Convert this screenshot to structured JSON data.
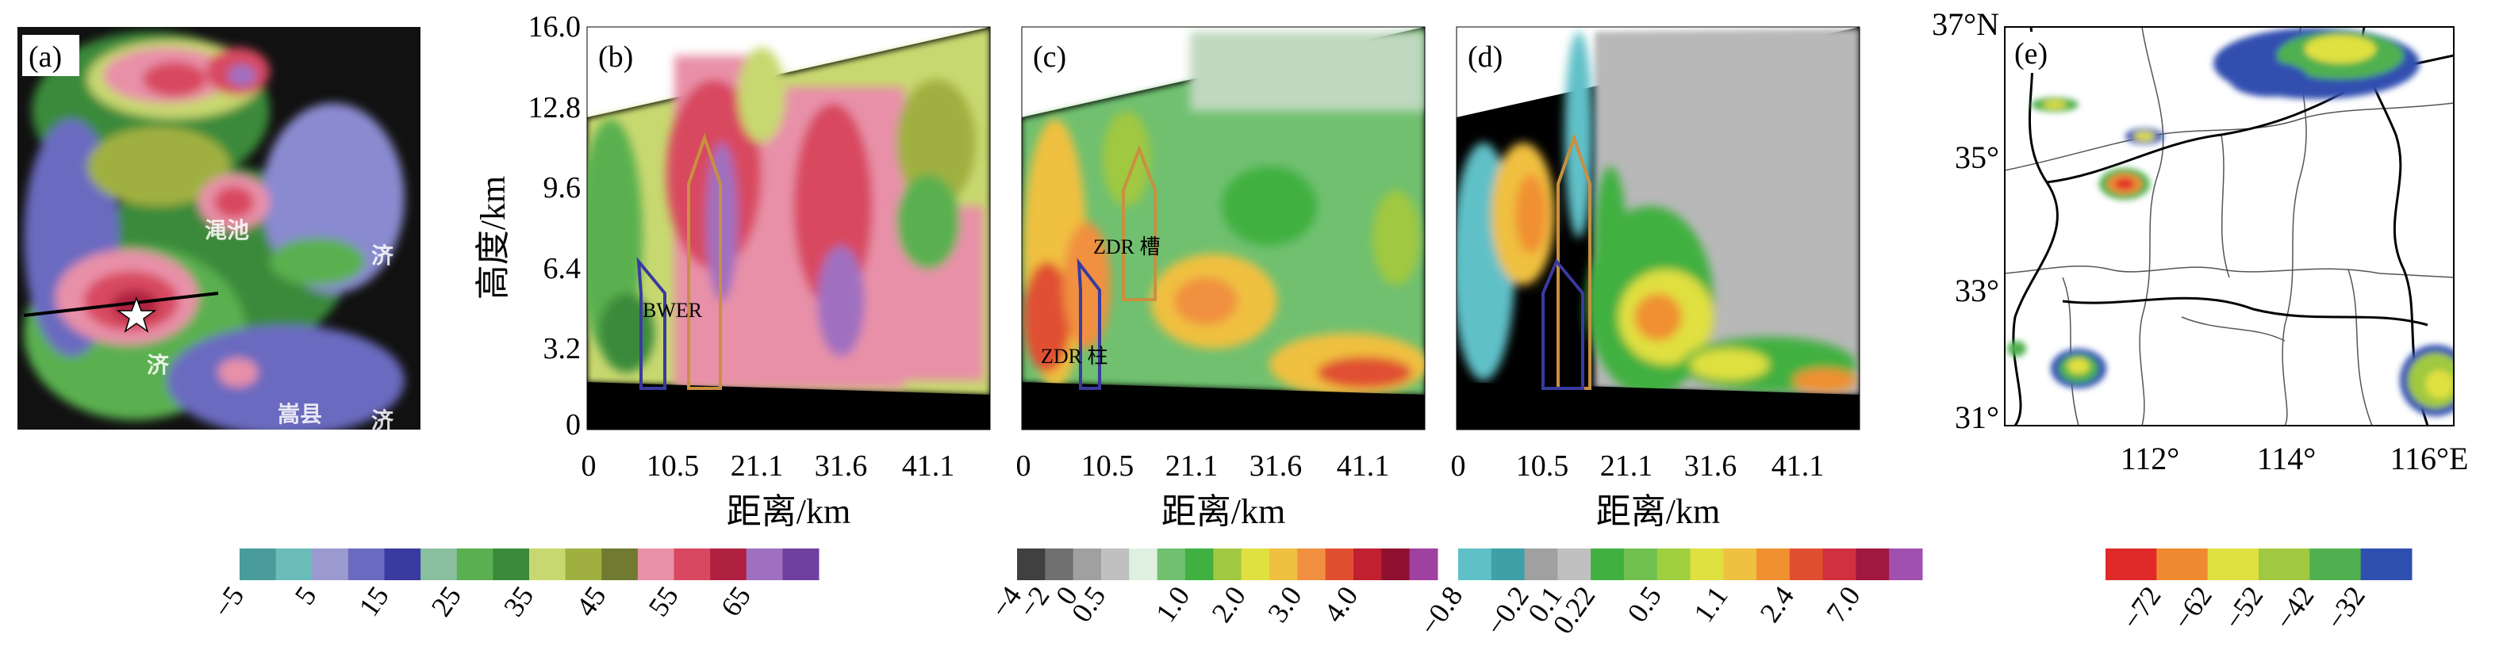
{
  "panels": {
    "a": {
      "label": "(a)"
    },
    "b": {
      "label": "(b)",
      "annotation": "BWER"
    },
    "c": {
      "label": "(c)",
      "annotation_trough": "ZDR 槽",
      "annotation_column": "ZDR 柱"
    },
    "d": {
      "label": "(d)"
    },
    "e": {
      "label": "(e)"
    }
  },
  "radar_map_labels": [
    "渑池",
    "济",
    "济",
    "嵩县",
    "济"
  ],
  "chart_data": [
    {
      "type": "heatmap",
      "title": "(b)",
      "ylabel": "高度/km",
      "xlabel": "距离/km",
      "y_ticks": [
        "16.0",
        "12.8",
        "9.6",
        "6.4",
        "3.2",
        "0"
      ],
      "x_ticks": [
        "0",
        "10.5",
        "21.1",
        "31.6",
        "41.1"
      ],
      "ylim": [
        0,
        16.0
      ]
    },
    {
      "type": "heatmap",
      "title": "(c)",
      "xlabel": "距离/km",
      "x_ticks": [
        "0",
        "10.5",
        "21.1",
        "31.6",
        "41.1"
      ]
    },
    {
      "type": "heatmap",
      "title": "(d)",
      "xlabel": "距离/km",
      "x_ticks": [
        "0",
        "10.5",
        "21.1",
        "31.6",
        "41.1"
      ]
    },
    {
      "type": "heatmap",
      "title": "(e)",
      "lat_ticks": [
        "37°N",
        "35°",
        "33°",
        "31°"
      ],
      "lon_ticks": [
        "112°",
        "114°",
        "116°E"
      ]
    }
  ],
  "colorbars": [
    {
      "name": "reflectivity",
      "colors": [
        "#4a9c9c",
        "#6abcb8",
        "#9a9ad0",
        "#6a6ac0",
        "#3a3aa0",
        "#8ac0a0",
        "#5ab050",
        "#3a8a3a",
        "#c8d870",
        "#a0b040",
        "#707a30",
        "#e890a8",
        "#d84860",
        "#b02040",
        "#a070c0",
        "#7040a0"
      ],
      "labels": [
        "−5",
        "5",
        "15",
        "25",
        "35",
        "45",
        "55",
        "65"
      ]
    },
    {
      "name": "zdr",
      "colors": [
        "#404040",
        "#707070",
        "#a0a0a0",
        "#c0c0c0",
        "#e0f0e0",
        "#70c070",
        "#40b040",
        "#a0c840",
        "#e0e040",
        "#f0c040",
        "#f09040",
        "#e05030",
        "#c02030",
        "#901030",
        "#a040a0"
      ],
      "labels": [
        "−4",
        "−2",
        "0",
        "0.5",
        "1.0",
        "2.0",
        "3.0",
        "4.0"
      ]
    },
    {
      "name": "kdp",
      "colors": [
        "#60c0c8",
        "#40a0a8",
        "#a0a0a0",
        "#c0c0c0",
        "#40b040",
        "#70c050",
        "#a0d040",
        "#e0e040",
        "#f0c040",
        "#f09030",
        "#e05030",
        "#d03040",
        "#a01840",
        "#a050b0"
      ],
      "labels": [
        "−0.8",
        "−0.2",
        "0.1",
        "0.22",
        "0.5",
        "1.1",
        "2.4",
        "7.0"
      ]
    },
    {
      "name": "tbb",
      "colors": [
        "#e02a2a",
        "#f08a30",
        "#e0e040",
        "#a0c840",
        "#50b050",
        "#3050b0"
      ],
      "labels": [
        "−72",
        "−62",
        "−52",
        "−42",
        "−32"
      ]
    }
  ]
}
